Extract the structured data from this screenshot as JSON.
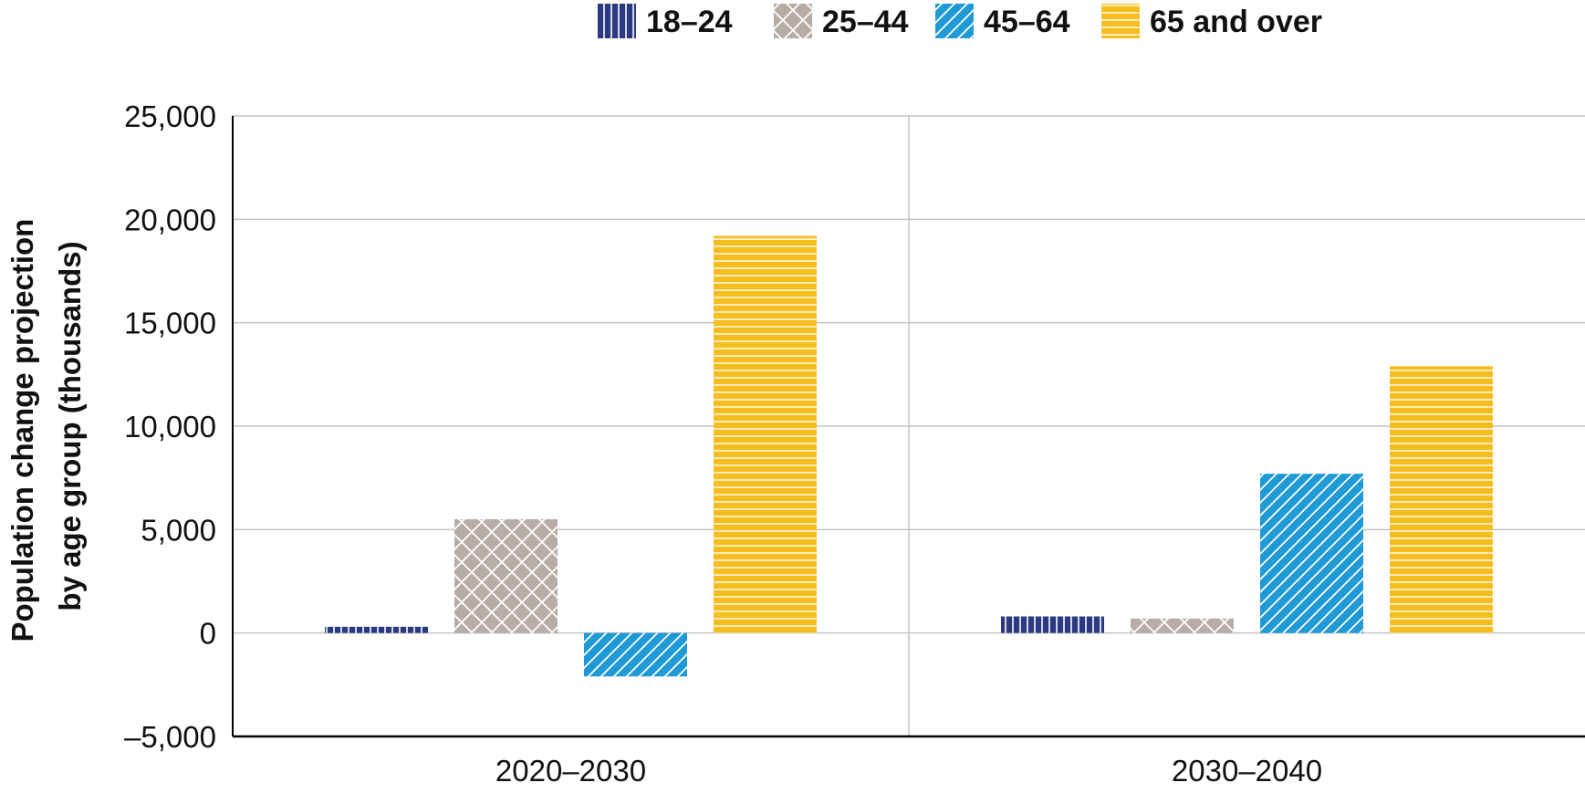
{
  "chart_data": {
    "type": "bar",
    "categories": [
      "2020–2030",
      "2030–2040"
    ],
    "series": [
      {
        "name": "18–24",
        "values": [
          300,
          800
        ],
        "color": "#2b3a80",
        "pattern": "vertical"
      },
      {
        "name": "25–44",
        "values": [
          5500,
          700
        ],
        "color": "#b8aca6",
        "pattern": "crosshatch"
      },
      {
        "name": "45–64",
        "values": [
          -2100,
          7700
        ],
        "color": "#1f9ad6",
        "pattern": "diagonal"
      },
      {
        "name": "65 and over",
        "values": [
          19200,
          12900
        ],
        "color": "#f7bd1e",
        "pattern": "horizontal"
      }
    ],
    "ylabel": [
      "Population change projection",
      "by age group (thousands)"
    ],
    "ylim": [
      -5000,
      25000
    ],
    "yticks": [
      -5000,
      0,
      5000,
      10000,
      15000,
      20000,
      25000
    ],
    "ytick_labels": [
      "–5,000",
      "0",
      "5,000",
      "10,000",
      "15,000",
      "20,000",
      "25,000"
    ],
    "grid": true,
    "legend_position": "top"
  }
}
